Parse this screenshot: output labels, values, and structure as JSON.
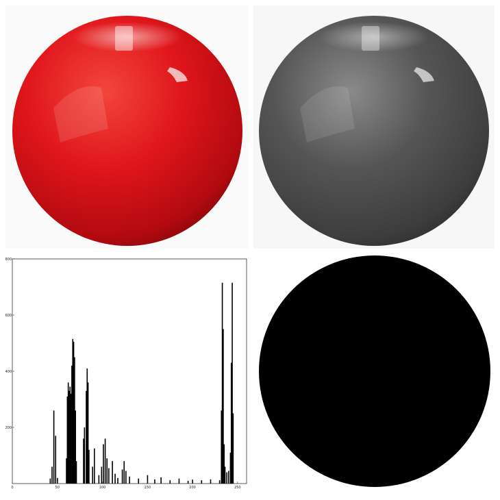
{
  "panels": {
    "color_image": {
      "subject": "red-ball",
      "color": "#d61116"
    },
    "grayscale_image": {
      "subject": "gray-ball",
      "color": "#4a4a4a"
    },
    "binary_mask": {
      "subject": "black-disc",
      "color": "#000000"
    }
  },
  "chart_data": {
    "type": "histogram",
    "xlabel": "",
    "ylabel": "",
    "xlim": [
      0,
      260
    ],
    "ylim": [
      0,
      800
    ],
    "x_ticks": [
      "0",
      "50",
      "100",
      "150",
      "200",
      "250"
    ],
    "y_ticks": [
      "200",
      "400",
      "600",
      "800"
    ],
    "peaks": [
      {
        "x": 42,
        "y": 18
      },
      {
        "x": 44,
        "y": 60
      },
      {
        "x": 46,
        "y": 260
      },
      {
        "x": 48,
        "y": 170
      },
      {
        "x": 50,
        "y": 20
      },
      {
        "x": 60,
        "y": 90
      },
      {
        "x": 61,
        "y": 310
      },
      {
        "x": 62,
        "y": 360
      },
      {
        "x": 63,
        "y": 330
      },
      {
        "x": 64,
        "y": 345
      },
      {
        "x": 65,
        "y": 320
      },
      {
        "x": 66,
        "y": 420
      },
      {
        "x": 67,
        "y": 515
      },
      {
        "x": 68,
        "y": 505
      },
      {
        "x": 69,
        "y": 450
      },
      {
        "x": 70,
        "y": 260
      },
      {
        "x": 71,
        "y": 80
      },
      {
        "x": 79,
        "y": 160
      },
      {
        "x": 80,
        "y": 200
      },
      {
        "x": 82,
        "y": 330
      },
      {
        "x": 83,
        "y": 410
      },
      {
        "x": 84,
        "y": 360
      },
      {
        "x": 85,
        "y": 120
      },
      {
        "x": 89,
        "y": 60
      },
      {
        "x": 91,
        "y": 125
      },
      {
        "x": 96,
        "y": 30
      },
      {
        "x": 99,
        "y": 60
      },
      {
        "x": 101,
        "y": 140
      },
      {
        "x": 103,
        "y": 160
      },
      {
        "x": 105,
        "y": 90
      },
      {
        "x": 107,
        "y": 55
      },
      {
        "x": 111,
        "y": 80
      },
      {
        "x": 114,
        "y": 35
      },
      {
        "x": 117,
        "y": 20
      },
      {
        "x": 122,
        "y": 50
      },
      {
        "x": 124,
        "y": 80
      },
      {
        "x": 126,
        "y": 45
      },
      {
        "x": 130,
        "y": 25
      },
      {
        "x": 140,
        "y": 18
      },
      {
        "x": 150,
        "y": 30
      },
      {
        "x": 158,
        "y": 15
      },
      {
        "x": 165,
        "y": 22
      },
      {
        "x": 175,
        "y": 12
      },
      {
        "x": 185,
        "y": 18
      },
      {
        "x": 195,
        "y": 10
      },
      {
        "x": 200,
        "y": 14
      },
      {
        "x": 210,
        "y": 12
      },
      {
        "x": 220,
        "y": 15
      },
      {
        "x": 230,
        "y": 12
      },
      {
        "x": 232,
        "y": 260
      },
      {
        "x": 233,
        "y": 715
      },
      {
        "x": 234,
        "y": 550
      },
      {
        "x": 235,
        "y": 140
      },
      {
        "x": 236,
        "y": 60
      },
      {
        "x": 238,
        "y": 40
      },
      {
        "x": 240,
        "y": 45
      },
      {
        "x": 242,
        "y": 110
      },
      {
        "x": 243,
        "y": 430
      },
      {
        "x": 244,
        "y": 715
      },
      {
        "x": 245,
        "y": 250
      }
    ]
  }
}
